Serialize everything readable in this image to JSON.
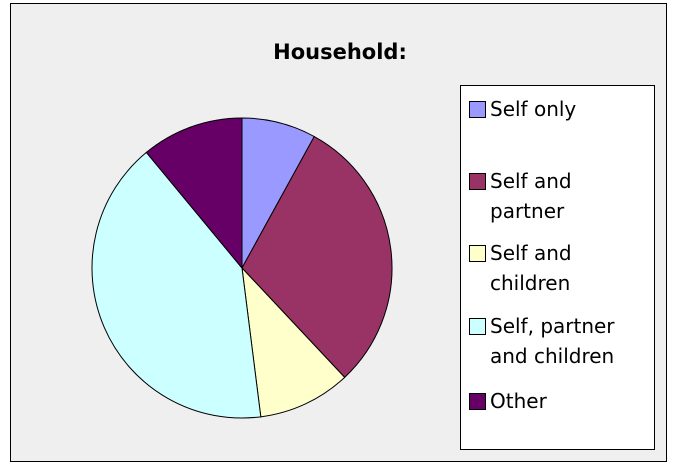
{
  "chart_data": {
    "type": "pie",
    "title": "Household:",
    "categories": [
      "Self only",
      "Self and partner",
      "Self and children",
      "Self, partner and children",
      "Other"
    ],
    "values": [
      8,
      30,
      10,
      41,
      11
    ],
    "colors": [
      "#9999ff",
      "#993366",
      "#ffffcc",
      "#ccffff",
      "#660066"
    ],
    "legend": "right"
  }
}
